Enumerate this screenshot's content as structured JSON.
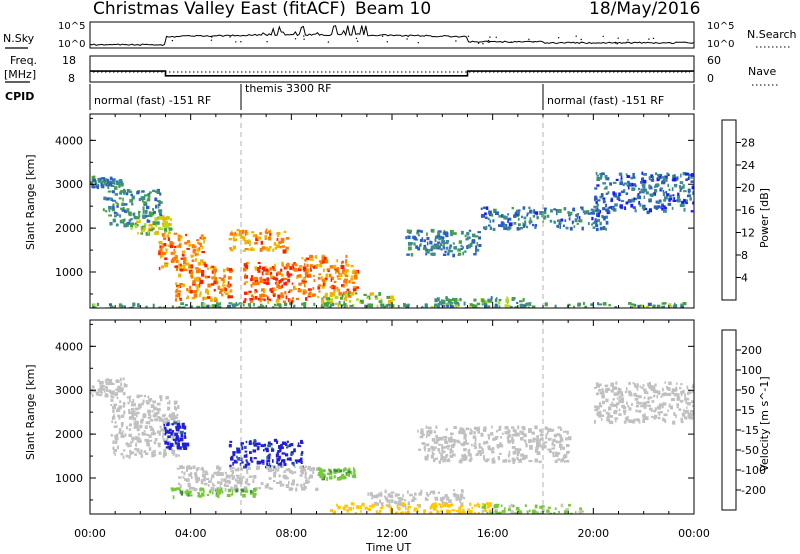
{
  "header": {
    "station": "Christmas Valley East (fitACF)",
    "beam": "Beam 10",
    "date": "18/May/2016"
  },
  "top_panels": {
    "nsky_label": "N.Sky",
    "nsky_ticks": [
      "10^5",
      "10^0"
    ],
    "nsearch_label": "N.Search",
    "freq_label_1": "Freq.",
    "freq_label_2": "[MHz]",
    "freq_ticks": [
      "18",
      "8"
    ],
    "nave_label": "Nave",
    "nave_ticks": [
      "60",
      "0"
    ],
    "cpid_label": "CPID",
    "cpid_segments": [
      {
        "label": "normal (fast) -151 RF",
        "start_hour": 0,
        "end_hour": 6
      },
      {
        "label": "themis 3300 RF",
        "start_hour": 6,
        "end_hour": 18
      },
      {
        "label": "normal (fast) -151 RF",
        "start_hour": 18,
        "end_hour": 24
      }
    ],
    "frequency_steps": [
      {
        "start_hour": 0,
        "end_hour": 3,
        "mhz": 12.2
      },
      {
        "start_hour": 3,
        "end_hour": 15,
        "mhz": 10.4
      },
      {
        "start_hour": 15,
        "end_hour": 24,
        "mhz": 12.2
      }
    ]
  },
  "chart_data": [
    {
      "type": "heatmap",
      "name": "Power",
      "ylabel": "Slant Range [km]",
      "xlabel": "Time UT",
      "xlim": [
        0,
        24
      ],
      "ylim": [
        180,
        4600
      ],
      "y_ticks": [
        "1000",
        "2000",
        "3000",
        "4000"
      ],
      "x_ticks": [
        "00:00",
        "04:00",
        "08:00",
        "12:00",
        "16:00",
        "20:00",
        "00:00"
      ],
      "colorbar_label": "Power [dB]",
      "colorbar_ticks": [
        "4",
        "8",
        "12",
        "16",
        "20",
        "24",
        "28"
      ],
      "colorbar_colors": [
        "#1a1aff",
        "#2a5fbf",
        "#3c8c8c",
        "#46a046",
        "#b4dc1e",
        "#f0b400",
        "#ff7800",
        "#ff1e00"
      ],
      "regions": [
        {
          "t0": 0.0,
          "t1": 1.3,
          "r0": 2950,
          "r1": 3200,
          "level": 10
        },
        {
          "t0": 0.5,
          "t1": 2.8,
          "r0": 2100,
          "r1": 2900,
          "level": 11
        },
        {
          "t0": 1.5,
          "t1": 3.2,
          "r0": 1900,
          "r1": 2300,
          "level": 18
        },
        {
          "t0": 2.7,
          "t1": 4.5,
          "r0": 1100,
          "r1": 1900,
          "level": 25
        },
        {
          "t0": 3.3,
          "t1": 5.6,
          "r0": 400,
          "r1": 1200,
          "level": 26
        },
        {
          "t0": 5.5,
          "t1": 7.8,
          "r0": 1500,
          "r1": 2000,
          "level": 24
        },
        {
          "t0": 6.0,
          "t1": 8.6,
          "r0": 350,
          "r1": 1250,
          "level": 27
        },
        {
          "t0": 8.4,
          "t1": 10.6,
          "r0": 450,
          "r1": 1400,
          "level": 25
        },
        {
          "t0": 9.0,
          "t1": 12.0,
          "r0": 250,
          "r1": 550,
          "level": 17
        },
        {
          "t0": 12.5,
          "t1": 15.5,
          "r0": 1400,
          "r1": 2000,
          "level": 9
        },
        {
          "t0": 13.5,
          "t1": 17.5,
          "r0": 250,
          "r1": 450,
          "level": 12
        },
        {
          "t0": 15.5,
          "t1": 20.5,
          "r0": 2000,
          "r1": 2500,
          "level": 8
        },
        {
          "t0": 20.0,
          "t1": 24.0,
          "r0": 2400,
          "r1": 3300,
          "level": 7
        },
        {
          "t0": 0.0,
          "t1": 24.0,
          "r0": 190,
          "r1": 320,
          "level": 12
        }
      ]
    },
    {
      "type": "heatmap",
      "name": "Velocity",
      "ylabel": "Slant Range [km]",
      "xlabel": "Time UT",
      "xlim": [
        0,
        24
      ],
      "ylim": [
        180,
        4600
      ],
      "y_ticks": [
        "1000",
        "2000",
        "3000",
        "4000"
      ],
      "x_ticks": [
        "00:00",
        "04:00",
        "08:00",
        "12:00",
        "16:00",
        "20:00",
        "00:00"
      ],
      "colorbar_label": "Velocity [m s^-1]",
      "colorbar_ticks": [
        "200",
        "100",
        "50",
        "15",
        "-15",
        "-50",
        "-100",
        "-200"
      ],
      "colorbar_colors": [
        "#1e1edc",
        "#2a64a0",
        "#3c8c3c",
        "#78c83c",
        "#c8c8c8",
        "#ffc800",
        "#ff8c00",
        "#ff5000",
        "#e60000"
      ],
      "ground_scatter_color": "#c0c0c0",
      "regions": [
        {
          "t0": 0.0,
          "t1": 1.4,
          "r0": 2900,
          "r1": 3300,
          "level": 0
        },
        {
          "t0": 0.8,
          "t1": 3.5,
          "r0": 1500,
          "r1": 2900,
          "level": 0
        },
        {
          "t0": 2.9,
          "t1": 3.8,
          "r0": 1700,
          "r1": 2300,
          "level": 250
        },
        {
          "t0": 5.5,
          "t1": 8.4,
          "r0": 1250,
          "r1": 1900,
          "level": 240
        },
        {
          "t0": 3.4,
          "t1": 9.0,
          "r0": 750,
          "r1": 1300,
          "level": 0
        },
        {
          "t0": 3.2,
          "t1": 6.5,
          "r0": 600,
          "r1": 800,
          "level": 40
        },
        {
          "t0": 9.0,
          "t1": 10.5,
          "r0": 1000,
          "r1": 1250,
          "level": 40
        },
        {
          "t0": 11.0,
          "t1": 15.0,
          "r0": 400,
          "r1": 750,
          "level": 0
        },
        {
          "t0": 13.0,
          "t1": 19.0,
          "r0": 1400,
          "r1": 2200,
          "level": 0
        },
        {
          "t0": 20.0,
          "t1": 24.0,
          "r0": 2300,
          "r1": 3200,
          "level": 0
        },
        {
          "t0": 9.5,
          "t1": 16.0,
          "r0": 200,
          "r1": 450,
          "level": -30
        },
        {
          "t0": 15.5,
          "t1": 19.5,
          "r0": 200,
          "r1": 420,
          "level": 20
        }
      ]
    }
  ]
}
